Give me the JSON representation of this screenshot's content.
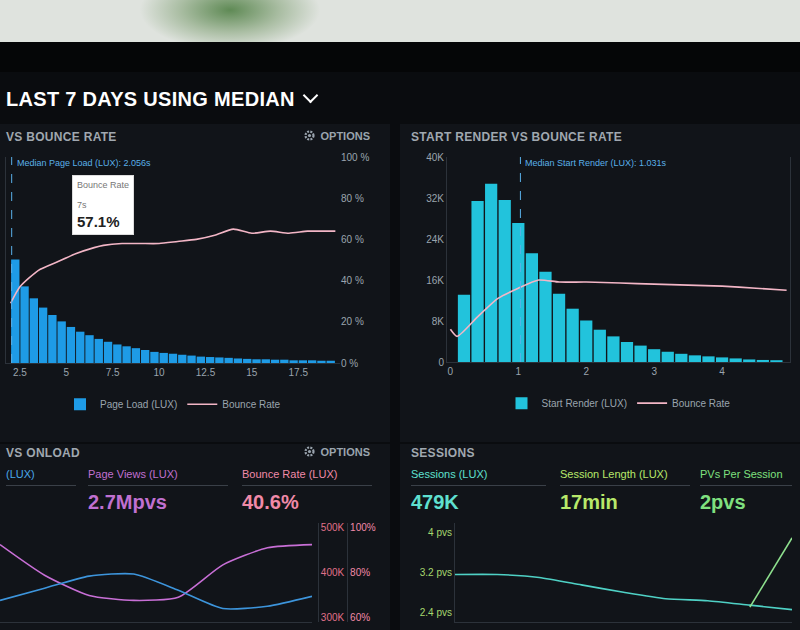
{
  "header": "LAST 7 DAYS USING MEDIAN",
  "chart_data": [
    {
      "type": "bar",
      "title": "VS BOUNCE RATE",
      "options": "OPTIONS",
      "x": [
        2.25,
        2.75,
        3.25,
        3.75,
        4.25,
        4.75,
        5.25,
        5.75,
        6.25,
        6.75,
        7.25,
        7.75,
        8.25,
        8.75,
        9.25,
        9.75,
        10.25,
        10.75,
        11.25,
        11.75,
        12.25,
        12.75,
        13.25,
        13.75,
        14.25,
        14.75,
        15.25,
        15.75,
        16.25,
        16.75,
        17.25,
        17.75,
        18.25,
        18.75,
        19.25
      ],
      "xlim": [
        1.75,
        19.75
      ],
      "xticks": [
        2.5,
        5,
        7.5,
        10,
        12.5,
        15,
        17.5
      ],
      "ylim": [
        0,
        100
      ],
      "yticks": [],
      "y2lim": [
        0,
        100
      ],
      "y2ticks": [
        {
          "value": 0,
          "label": "0 %"
        },
        {
          "value": 20,
          "label": "20 %"
        },
        {
          "value": 40,
          "label": "40 %"
        },
        {
          "value": 60,
          "label": "60 %"
        },
        {
          "value": 80,
          "label": "80 %"
        },
        {
          "value": 100,
          "label": "100 %"
        }
      ],
      "series": [
        {
          "name": "Page Load (LUX)",
          "type": "bar",
          "color": "#1e9be6",
          "values": [
            50.2,
            37.2,
            31.4,
            26.9,
            23.3,
            20.2,
            17.5,
            15.2,
            13.5,
            11.7,
            10.3,
            9.0,
            8.1,
            7.2,
            6.3,
            5.4,
            4.9,
            4.5,
            4.0,
            3.6,
            3.1,
            2.9,
            2.7,
            2.5,
            2.2,
            2.0,
            1.8,
            1.8,
            1.6,
            1.6,
            1.3,
            1.3,
            1.3,
            1.1,
            1.1
          ]
        },
        {
          "name": "Bounce Rate",
          "type": "line",
          "axis": "y2",
          "color": "#f3b6c6",
          "x": [
            2,
            2.5,
            3.5,
            4.5,
            5.5,
            6.5,
            7,
            8,
            9,
            10,
            11,
            12,
            13,
            14,
            15,
            16,
            17,
            18,
            19,
            19.5
          ],
          "values": [
            29,
            37,
            45,
            49,
            53,
            56,
            57.1,
            58,
            58,
            58,
            59,
            60,
            62,
            65,
            63,
            64,
            63,
            64,
            64,
            64
          ]
        }
      ],
      "annotations": [
        {
          "text": "Median Page Load (LUX): 2.056s",
          "x": 2.056
        }
      ],
      "tooltip": {
        "title": "Bounce Rate",
        "x_label": "7s",
        "value_label": "57.1%",
        "x": 7,
        "y": 57.1
      },
      "legend": "bottom",
      "grid": false
    },
    {
      "type": "bar",
      "title": "START RENDER VS BOUNCE RATE",
      "x": [
        0.2,
        0.4,
        0.6,
        0.8,
        1.0,
        1.2,
        1.4,
        1.6,
        1.8,
        2.0,
        2.2,
        2.4,
        2.6,
        2.8,
        3.0,
        3.2,
        3.4,
        3.6,
        3.8,
        4.0,
        4.2,
        4.4,
        4.6,
        4.8
      ],
      "xlim": [
        -0.05,
        5.0
      ],
      "xticks": [
        0,
        1,
        2,
        3,
        4
      ],
      "ylim": [
        0,
        40000
      ],
      "yticks": [
        0,
        {
          "value": 8000,
          "label": "8K"
        },
        {
          "value": 16000,
          "label": "16K"
        },
        {
          "value": 24000,
          "label": "24K"
        },
        {
          "value": 32000,
          "label": "32K"
        },
        {
          "value": 40000,
          "label": "40K"
        }
      ],
      "y2lim": [
        0,
        100
      ],
      "y2ticks": [],
      "series": [
        {
          "name": "Start Render (LUX)",
          "type": "bar",
          "color": "#22c3dc",
          "values": [
            13100,
            31400,
            34800,
            31600,
            27100,
            21200,
            17600,
            13300,
            10400,
            8100,
            6300,
            5000,
            3900,
            3200,
            2500,
            2000,
            1600,
            1300,
            1100,
            900,
            700,
            500,
            400,
            350
          ]
        },
        {
          "name": "Bounce Rate",
          "type": "line",
          "axis": "y2",
          "color": "#f3b6c6",
          "x": [
            0,
            0.1,
            0.4,
            0.7,
            1.0,
            1.3,
            1.6,
            2.0,
            2.5,
            3.0,
            3.5,
            4.0,
            4.5,
            4.95
          ],
          "values": [
            16,
            12.5,
            22,
            31,
            36,
            40,
            39,
            39,
            38.5,
            38,
            37.5,
            37,
            36,
            35
          ]
        }
      ],
      "annotations": [
        {
          "text": "Median Start Render (LUX): 1.031s",
          "x": 1.031
        }
      ],
      "legend": "bottom",
      "grid": false
    },
    {
      "type": "line",
      "title": "VS ONLOAD",
      "options": "OPTIONS",
      "metrics": [
        {
          "label": "(LUX)"
        },
        {
          "label": "Page Views (LUX)",
          "value": "2.7Mpvs"
        },
        {
          "label": "Bounce Rate (LUX)",
          "value": "40.6%"
        }
      ],
      "x": [
        0,
        1,
        2,
        3,
        4,
        5,
        6,
        7
      ],
      "xlim": [
        0,
        7
      ],
      "xticks": [],
      "ylim": [
        290000,
        510000
      ],
      "yticks": [
        {
          "value": 300000,
          "label": "300K"
        },
        {
          "value": 400000,
          "label": "400K"
        },
        {
          "value": 500000,
          "label": "500K"
        }
      ],
      "y2lim": [
        58,
        102
      ],
      "y2ticks": [
        {
          "value": 60,
          "label": "60%"
        },
        {
          "value": 80,
          "label": "80%"
        },
        {
          "value": 100,
          "label": "100%"
        }
      ],
      "series": [
        {
          "color": "#c86fd6",
          "values": [
            462000,
            394000,
            349000,
            338000,
            345000,
            417000,
            455000,
            462000
          ]
        },
        {
          "axis": "y2",
          "color": "#3d95dc",
          "values": [
            67.6,
            73,
            78.4,
            79.3,
            72.1,
            64,
            65,
            69.4
          ]
        }
      ],
      "grid": false
    },
    {
      "type": "line",
      "title": "SESSIONS",
      "metrics": [
        {
          "label": "Sessions (LUX)",
          "value": "479K"
        },
        {
          "label": "Session Length (LUX)",
          "value": "17min"
        },
        {
          "label": "PVs Per Session",
          "value": "2pvs"
        }
      ],
      "x": [
        0,
        1,
        2,
        3,
        4,
        5,
        6,
        7,
        8
      ],
      "xlim": [
        0,
        8
      ],
      "xticks": [],
      "ylim": [
        2.2,
        4.2
      ],
      "yticks": [
        {
          "value": 4,
          "label": "4 pvs"
        },
        {
          "value": 3.2,
          "label": "3.2 pvs"
        },
        {
          "value": 2.4,
          "label": "2.4 pvs"
        }
      ],
      "series": [
        {
          "color": "#4fd1c5",
          "values": [
            3.16,
            3.16,
            3.1,
            2.95,
            2.8,
            2.67,
            2.63,
            2.54,
            2.45
          ]
        },
        {
          "color": "#8ee08e",
          "values": [
            null,
            null,
            null,
            null,
            null,
            null,
            null,
            2.5,
            3.9
          ]
        }
      ],
      "grid": false
    }
  ]
}
